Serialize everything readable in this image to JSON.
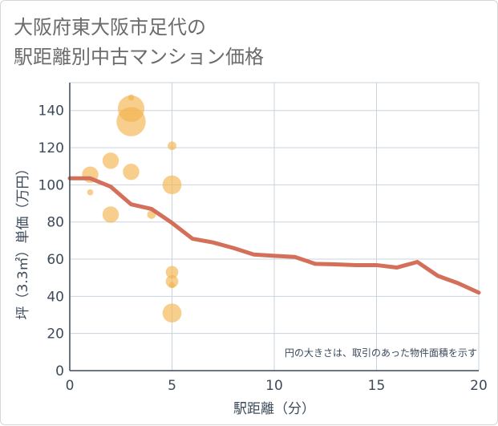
{
  "chart_data": {
    "type": "scatter+line",
    "title_lines": [
      "大阪府東大阪市足代の",
      "駅距離別中古マンション価格"
    ],
    "xlabel": "駅距離（分）",
    "ylabel": "坪（3.3㎡）単価（万円）",
    "xlim": [
      0,
      20
    ],
    "ylim": [
      0,
      155
    ],
    "x_ticks": [
      0,
      5,
      10,
      15,
      20
    ],
    "y_ticks": [
      0,
      20,
      40,
      60,
      80,
      100,
      120,
      140
    ],
    "grid": true,
    "note": "円の大きさは、取引のあった物件面積を示す",
    "colors": {
      "bubble": "#f2b44e",
      "line": "#d4705a",
      "grid": "#c9d3de",
      "axis": "#3c4a5a"
    },
    "bubbles": [
      {
        "x": 1,
        "y": 105.5,
        "size": 10
      },
      {
        "x": 1,
        "y": 96,
        "size": 2
      },
      {
        "x": 2,
        "y": 113,
        "size": 10
      },
      {
        "x": 2,
        "y": 84,
        "size": 10
      },
      {
        "x": 3,
        "y": 147,
        "size": 2
      },
      {
        "x": 3,
        "y": 141,
        "size": 18
      },
      {
        "x": 3,
        "y": 134,
        "size": 20
      },
      {
        "x": 3,
        "y": 107,
        "size": 10
      },
      {
        "x": 4,
        "y": 84,
        "size": 4
      },
      {
        "x": 5,
        "y": 121,
        "size": 4
      },
      {
        "x": 5,
        "y": 100,
        "size": 12
      },
      {
        "x": 5,
        "y": 53,
        "size": 7
      },
      {
        "x": 5,
        "y": 48,
        "size": 7
      },
      {
        "x": 5,
        "y": 46,
        "size": 2
      },
      {
        "x": 5,
        "y": 31,
        "size": 12
      }
    ],
    "line": {
      "x": [
        0,
        1,
        2,
        3,
        4,
        5,
        6,
        7,
        8,
        9,
        10,
        11,
        12,
        13,
        14,
        15,
        16,
        17,
        18,
        19,
        20
      ],
      "y": [
        103.5,
        103.5,
        99,
        89.5,
        87,
        79.5,
        71,
        69,
        66,
        62.5,
        61.8,
        61.2,
        57.5,
        57.2,
        56.8,
        56.8,
        55.5,
        58.5,
        51,
        47,
        42
      ]
    }
  }
}
